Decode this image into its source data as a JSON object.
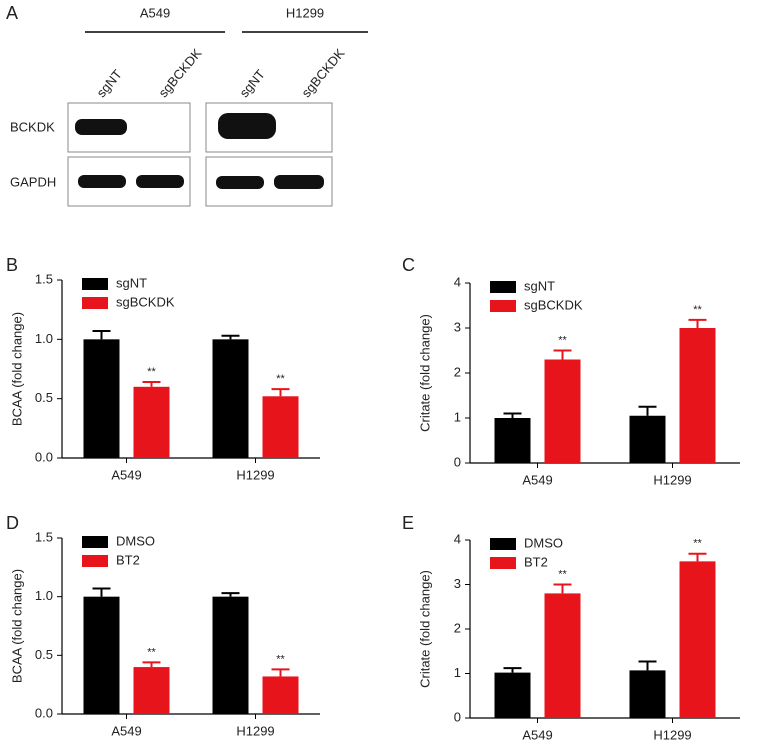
{
  "blot": {
    "label": "A",
    "cell_lines": [
      "A549",
      "H1299"
    ],
    "lanes": [
      "sgNT",
      "sgBCKDK",
      "sgNT",
      "sgBCKDK"
    ],
    "proteins": [
      "BCKDK",
      "GAPDH"
    ]
  },
  "chart_data": [
    {
      "type": "bar",
      "label": "B",
      "ylabel": "BCAA (fold change)",
      "categories": [
        "A549",
        "H1299"
      ],
      "series": [
        {
          "name": "sgNT",
          "color": "#000000",
          "values": [
            1.0,
            1.0
          ],
          "errors": [
            0.07,
            0.03
          ]
        },
        {
          "name": "sgBCKDK",
          "color": "#e8141b",
          "values": [
            0.6,
            0.52
          ],
          "errors": [
            0.04,
            0.06
          ],
          "annotations": [
            "**",
            "**"
          ]
        }
      ],
      "ylim": [
        0,
        1.5
      ],
      "yticks": [
        {
          "value": 0,
          "label": "0.0"
        },
        0.5,
        {
          "value": 1,
          "label": "1.0"
        },
        1.5
      ],
      "legend": "upper left"
    },
    {
      "type": "bar",
      "label": "C",
      "ylabel": "Critate (fold change)",
      "categories": [
        "A549",
        "H1299"
      ],
      "series": [
        {
          "name": "sgNT",
          "color": "#000000",
          "values": [
            1.0,
            1.05
          ],
          "errors": [
            0.1,
            0.2
          ]
        },
        {
          "name": "sgBCKDK",
          "color": "#e8141b",
          "values": [
            2.3,
            3.0
          ],
          "errors": [
            0.2,
            0.18
          ],
          "annotations": [
            "**",
            "**"
          ]
        }
      ],
      "ylim": [
        0,
        4
      ],
      "yticks": [
        0,
        1,
        2,
        3,
        4
      ],
      "legend": "upper left"
    },
    {
      "type": "bar",
      "label": "D",
      "ylabel": "BCAA (fold change)",
      "categories": [
        "A549",
        "H1299"
      ],
      "series": [
        {
          "name": "DMSO",
          "color": "#000000",
          "values": [
            1.0,
            1.0
          ],
          "errors": [
            0.07,
            0.03
          ]
        },
        {
          "name": "BT2",
          "color": "#e8141b",
          "values": [
            0.4,
            0.32
          ],
          "errors": [
            0.04,
            0.06
          ],
          "annotations": [
            "**",
            "**"
          ]
        }
      ],
      "ylim": [
        0,
        1.5
      ],
      "yticks": [
        {
          "value": 0,
          "label": "0.0"
        },
        0.5,
        {
          "value": 1,
          "label": "1.0"
        },
        1.5
      ],
      "legend": "upper left"
    },
    {
      "type": "bar",
      "label": "E",
      "ylabel": "Critate (fold change)",
      "categories": [
        "A549",
        "H1299"
      ],
      "series": [
        {
          "name": "DMSO",
          "color": "#000000",
          "values": [
            1.02,
            1.07
          ],
          "errors": [
            0.1,
            0.2
          ]
        },
        {
          "name": "BT2",
          "color": "#e8141b",
          "values": [
            2.8,
            3.52
          ],
          "errors": [
            0.2,
            0.17
          ],
          "annotations": [
            "**",
            "**"
          ]
        }
      ],
      "ylim": [
        0,
        4
      ],
      "yticks": [
        0,
        1,
        2,
        3,
        4
      ],
      "legend": "upper left"
    }
  ]
}
